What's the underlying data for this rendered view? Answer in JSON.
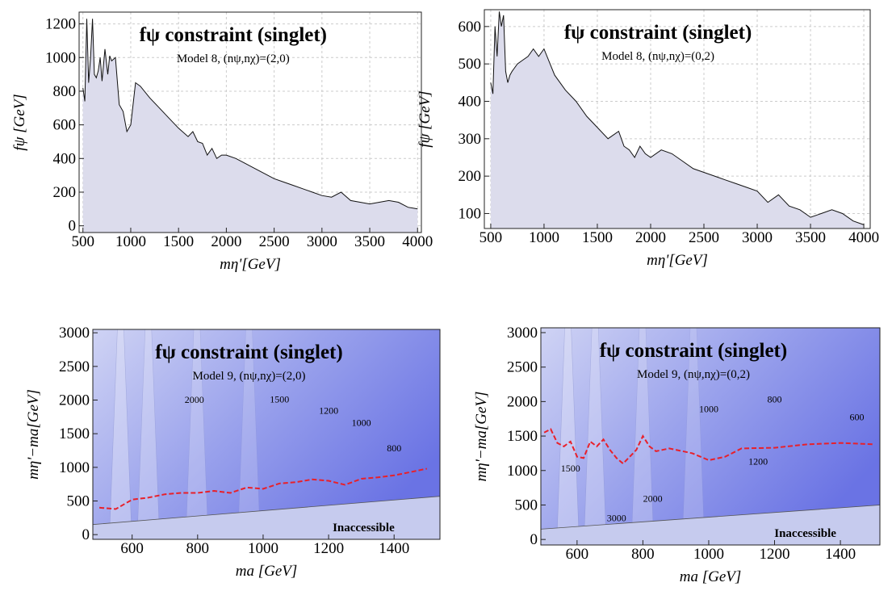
{
  "chart_data": [
    {
      "type": "area",
      "title": "fψ constraint (singlet)",
      "subtitle": "Model 8, (nψ,nχ)=(2,0)",
      "x_label": "mη'[GeV]",
      "y_label": "fψ [GeV]",
      "color": "#dcdcec",
      "grid": true,
      "x": [
        500,
        520,
        540,
        560,
        580,
        600,
        620,
        640,
        660,
        680,
        700,
        730,
        760,
        780,
        800,
        840,
        880,
        920,
        960,
        1000,
        1050,
        1100,
        1200,
        1300,
        1400,
        1500,
        1600,
        1650,
        1700,
        1750,
        1800,
        1850,
        1900,
        1950,
        2000,
        2100,
        2200,
        2300,
        2400,
        2500,
        2600,
        2700,
        2800,
        2900,
        3000,
        3100,
        3200,
        3300,
        3400,
        3500,
        3600,
        3700,
        3800,
        3900,
        4000
      ],
      "values": [
        820,
        740,
        1230,
        850,
        1000,
        1230,
        900,
        880,
        920,
        1000,
        860,
        1050,
        900,
        1010,
        980,
        1000,
        720,
        680,
        560,
        600,
        850,
        830,
        760,
        700,
        640,
        580,
        530,
        560,
        500,
        490,
        420,
        460,
        400,
        420,
        420,
        400,
        370,
        340,
        310,
        280,
        260,
        240,
        220,
        200,
        180,
        170,
        200,
        150,
        140,
        130,
        140,
        150,
        140,
        110,
        100
      ],
      "xlim": [
        460,
        4040
      ],
      "ylim": [
        -40,
        1270
      ],
      "xticks": [
        500,
        1000,
        1500,
        2000,
        2500,
        3000,
        3500,
        4000
      ],
      "yticks": [
        0,
        200,
        400,
        600,
        800,
        1000,
        1200
      ]
    },
    {
      "type": "area",
      "title": "fψ constraint (singlet)",
      "subtitle": "Model 8, (nψ,nχ)=(0,2)",
      "x_label": "mη'[GeV]",
      "y_label": "fψ [GeV]",
      "color": "#dcdcec",
      "grid": true,
      "x": [
        500,
        520,
        540,
        560,
        580,
        600,
        620,
        640,
        660,
        680,
        700,
        750,
        800,
        850,
        900,
        950,
        1000,
        1100,
        1200,
        1300,
        1400,
        1500,
        1600,
        1650,
        1700,
        1750,
        1800,
        1850,
        1900,
        1950,
        2000,
        2100,
        2200,
        2300,
        2400,
        2500,
        2600,
        2700,
        2800,
        2900,
        3000,
        3100,
        3200,
        3300,
        3400,
        3500,
        3600,
        3700,
        3800,
        3900,
        4000
      ],
      "values": [
        450,
        420,
        600,
        520,
        640,
        600,
        630,
        480,
        450,
        470,
        480,
        500,
        510,
        520,
        540,
        520,
        540,
        470,
        430,
        400,
        360,
        330,
        300,
        310,
        320,
        280,
        270,
        250,
        280,
        260,
        250,
        270,
        260,
        240,
        220,
        210,
        200,
        190,
        180,
        170,
        160,
        130,
        150,
        120,
        110,
        90,
        100,
        110,
        100,
        80,
        70
      ],
      "xlim": [
        440,
        4060
      ],
      "ylim": [
        60,
        645
      ],
      "xticks": [
        500,
        1000,
        1500,
        2000,
        2500,
        3000,
        3500,
        4000
      ],
      "yticks": [
        100,
        200,
        300,
        400,
        500,
        600
      ]
    },
    {
      "type": "contour",
      "title": "fψ constraint (singlet)",
      "subtitle": "Model 9, (nψ,nχ)=(2,0)",
      "x_label": "ma [GeV]",
      "y_label": "mη'−ma[GeV]",
      "region_label": "Inaccessible",
      "x": [
        500,
        550,
        600,
        650,
        700,
        750,
        800,
        850,
        900,
        950,
        1000,
        1050,
        1100,
        1150,
        1200,
        1250,
        1300,
        1350,
        1400,
        1450,
        1500
      ],
      "values": [
        400,
        380,
        520,
        550,
        600,
        620,
        620,
        650,
        620,
        700,
        680,
        760,
        780,
        820,
        800,
        740,
        830,
        850,
        880,
        930,
        980
      ],
      "line_color": "#e8202a",
      "boundary_x": [
        480,
        1540
      ],
      "boundary": [
        150,
        570
      ],
      "contour_labels": [
        {
          "text": "2000",
          "x": 790,
          "y": 1990
        },
        {
          "text": "1500",
          "x": 1050,
          "y": 2000
        },
        {
          "text": "1200",
          "x": 1200,
          "y": 1830
        },
        {
          "text": "1000",
          "x": 1300,
          "y": 1650
        },
        {
          "text": "800",
          "x": 1400,
          "y": 1270
        }
      ],
      "xlim": [
        480,
        1540
      ],
      "ylim": [
        -70,
        3050
      ],
      "xticks": [
        600,
        800,
        1000,
        1200,
        1400
      ],
      "yticks": [
        0,
        500,
        1000,
        1500,
        2000,
        2500,
        3000
      ]
    },
    {
      "type": "contour",
      "title": "fψ constraint (singlet)",
      "subtitle": "Model 9, (nψ,nχ)=(0,2)",
      "x_label": "ma [GeV]",
      "y_label": "mη'−ma[GeV]",
      "region_label": "Inaccessible",
      "x": [
        500,
        520,
        540,
        560,
        580,
        600,
        620,
        640,
        660,
        680,
        700,
        720,
        740,
        760,
        780,
        800,
        820,
        840,
        880,
        950,
        1000,
        1050,
        1100,
        1200,
        1300,
        1400,
        1500
      ],
      "values": [
        1550,
        1600,
        1400,
        1350,
        1420,
        1200,
        1180,
        1420,
        1350,
        1450,
        1300,
        1180,
        1100,
        1200,
        1300,
        1500,
        1350,
        1280,
        1320,
        1250,
        1150,
        1200,
        1320,
        1330,
        1380,
        1400,
        1380
      ],
      "line_color": "#e8202a",
      "boundary_x": [
        490,
        1520
      ],
      "boundary": [
        150,
        500
      ],
      "contour_labels": [
        {
          "text": "1000",
          "x": 1000,
          "y": 1880
        },
        {
          "text": "800",
          "x": 1200,
          "y": 2020
        },
        {
          "text": "600",
          "x": 1450,
          "y": 1760
        },
        {
          "text": "1500",
          "x": 580,
          "y": 1020
        },
        {
          "text": "1200",
          "x": 1150,
          "y": 1120
        },
        {
          "text": "2000",
          "x": 830,
          "y": 580
        },
        {
          "text": "3000",
          "x": 720,
          "y": 300
        }
      ],
      "xlim": [
        490,
        1520
      ],
      "ylim": [
        -80,
        3070
      ],
      "xticks": [
        600,
        800,
        1000,
        1200,
        1400
      ],
      "yticks": [
        0,
        500,
        1000,
        1500,
        2000,
        2500,
        3000
      ]
    }
  ]
}
